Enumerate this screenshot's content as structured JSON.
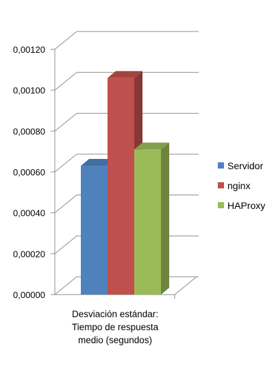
{
  "chart_data": {
    "type": "bar",
    "categories": [
      "Desviación estándar: Tiempo de respuesta medio (segundos)"
    ],
    "category_label_lines": [
      "Desviación estándar:",
      "Tiempo de respuesta",
      "medio (segundos)"
    ],
    "series": [
      {
        "name": "Servidor",
        "values": [
          0.00063
        ],
        "color": "#4f81bd"
      },
      {
        "name": "nginx",
        "values": [
          0.00106
        ],
        "color": "#c0504d"
      },
      {
        "name": "HAProxy",
        "values": [
          0.00071
        ],
        "color": "#9bbb59"
      }
    ],
    "yticks": [
      "0,00000",
      "0,00020",
      "0,00040",
      "0,00060",
      "0,00080",
      "0,00100",
      "0,00120"
    ],
    "ylim": [
      0,
      0.0012
    ],
    "grid": true,
    "legend_position": "right",
    "style": "3d-clustered-column"
  }
}
